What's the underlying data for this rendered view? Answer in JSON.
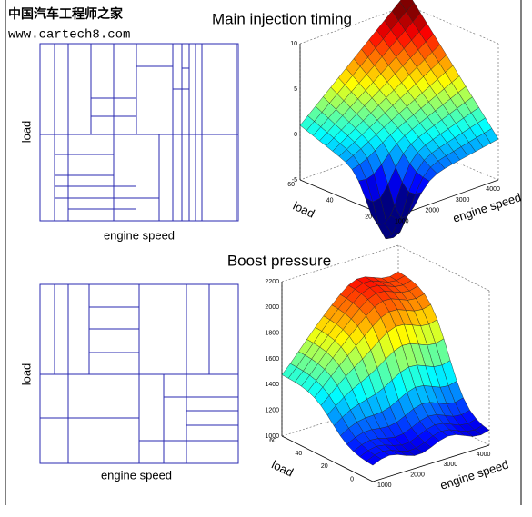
{
  "watermark": {
    "site_name": "中国汽车工程师之家",
    "url": "www.cartech8.com"
  },
  "panels": [
    {
      "title": "Main injection timing",
      "grid": {
        "x_label": "engine speed",
        "y_label": "load"
      },
      "surface": {
        "z_ticks": [
          "10",
          "5",
          "0",
          "-5"
        ],
        "load_ticks": [
          "60",
          "40",
          "20"
        ],
        "speed_ticks": [
          "1000",
          "2000",
          "3000",
          "4000"
        ],
        "x_label": "engine speed",
        "y_label": "load"
      }
    },
    {
      "title": "Boost pressure",
      "grid": {
        "x_label": "engine speed",
        "y_label": "load"
      },
      "surface": {
        "z_ticks": [
          "2200",
          "2000",
          "1800",
          "1600",
          "1400",
          "1200",
          "1000"
        ],
        "load_ticks": [
          "60",
          "40",
          "20",
          "0"
        ],
        "speed_ticks": [
          "1000",
          "2000",
          "3000",
          "4000"
        ],
        "x_label": "engine speed",
        "y_label": "load"
      }
    }
  ]
}
